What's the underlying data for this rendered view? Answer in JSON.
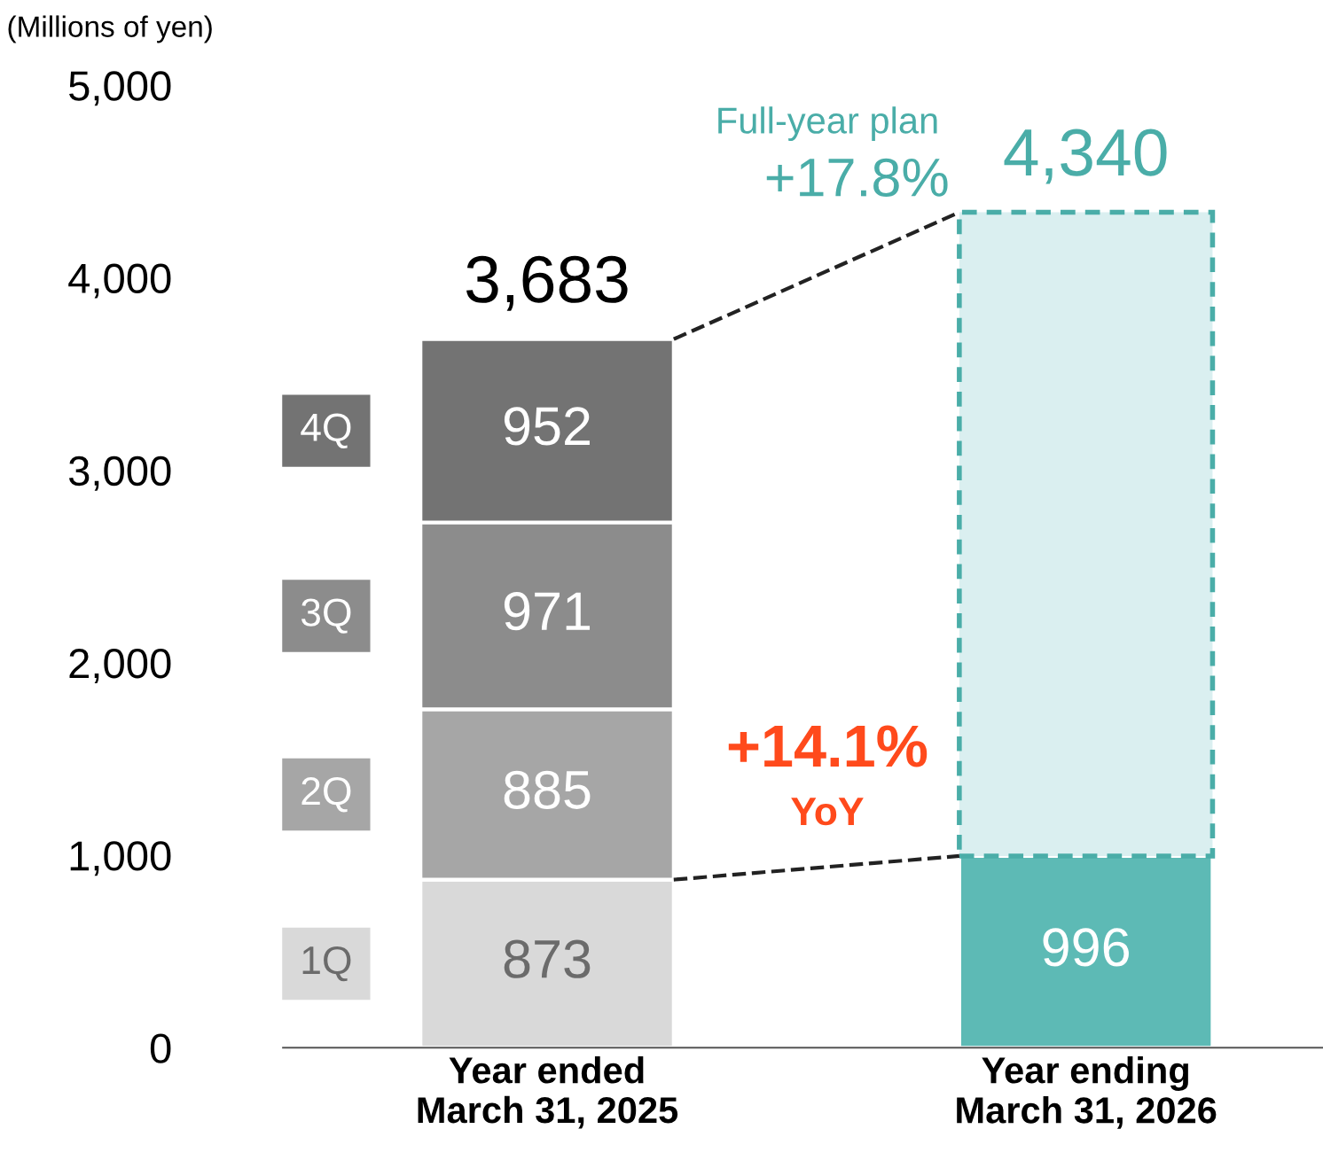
{
  "chart_data": {
    "type": "bar",
    "stacked": true,
    "ylabel": "(Millions of yen)",
    "categories": [
      "Year ended\nMarch 31, 2025",
      "Year ending\nMarch 31, 2026"
    ],
    "series": [
      {
        "name": "1Q",
        "color": "#d9d9d9",
        "colors": [
          "#d9d9d9",
          "#5dbab5"
        ],
        "values": [
          873,
          996
        ],
        "value_labels": [
          "873",
          "996"
        ]
      },
      {
        "name": "2Q",
        "color": "#a6a6a6",
        "values": [
          885,
          null
        ],
        "value_labels": [
          "885",
          null
        ]
      },
      {
        "name": "3Q",
        "color": "#8c8c8c",
        "values": [
          971,
          null
        ],
        "value_labels": [
          "971",
          null
        ]
      },
      {
        "name": "4Q",
        "color": "#737373",
        "values": [
          952,
          null
        ],
        "value_labels": [
          "952",
          null
        ]
      },
      {
        "color": "#daeff0",
        "line_style": "dashed",
        "values": [
          null,
          3344
        ]
      }
    ],
    "totals": [
      "3,683",
      "4,340"
    ],
    "ylim": [
      0,
      5000
    ],
    "yticks": [
      0,
      {
        "value": 1000,
        "label": "1,000"
      },
      {
        "value": 2000,
        "label": "2,000"
      },
      {
        "value": 3000,
        "label": "3,000"
      },
      {
        "value": 4000,
        "label": "4,000"
      },
      {
        "value": 5000,
        "label": "5,000"
      }
    ],
    "annotations": [
      "Full-year plan",
      {
        "text": "+17.8%",
        "x": "Year ending\nMarch 31, 2026",
        "y": 4340
      },
      "+14.1%",
      "YoY"
    ],
    "legend": "left",
    "grid": false
  }
}
